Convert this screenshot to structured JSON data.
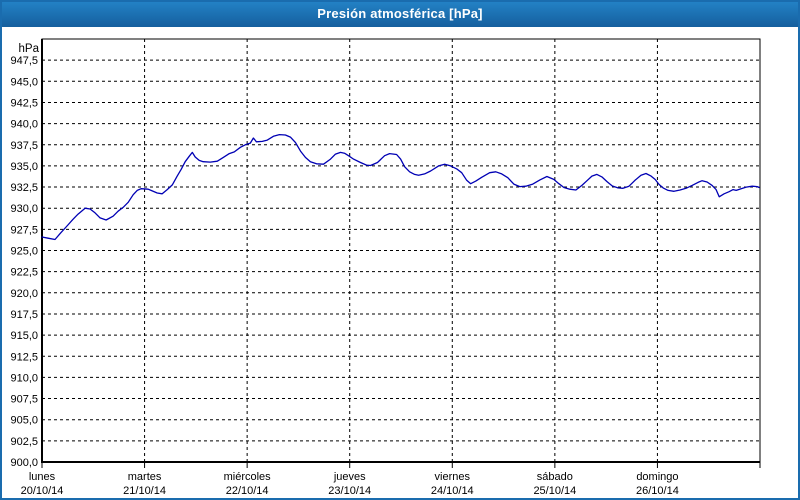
{
  "window": {
    "title": "Presión atmosférica [hPa]"
  },
  "colors": {
    "titlebar_top": "#2484c8",
    "titlebar_bottom": "#155f9e",
    "window_border": "#1a6cae",
    "plot_border": "#000000",
    "gridline": "#000000",
    "series_line": "#0000b4",
    "title_text": "#ffffff",
    "axis_text": "#000000",
    "background": "#ffffff"
  },
  "chart_data": {
    "type": "line",
    "title": "Presión atmosférica [hPa]",
    "grid": "dashed",
    "legend": "none",
    "y_axis": {
      "unit": "hPa",
      "min": 900,
      "max": 950,
      "tick_step": 2.5,
      "ticks": [
        [
          "947,5",
          947.5
        ],
        [
          "945,0",
          945.0
        ],
        [
          "942,5",
          942.5
        ],
        [
          "940,0",
          940.0
        ],
        [
          "937,5",
          937.5
        ],
        [
          "935,0",
          935.0
        ],
        [
          "932,5",
          932.5
        ],
        [
          "930,0",
          930.0
        ],
        [
          "927,5",
          927.5
        ],
        [
          "925,0",
          925.0
        ],
        [
          "922,5",
          922.5
        ],
        [
          "920,0",
          920.0
        ],
        [
          "917,5",
          917.5
        ],
        [
          "915,0",
          915.0
        ],
        [
          "912,5",
          912.5
        ],
        [
          "910,0",
          910.0
        ],
        [
          "907,5",
          907.5
        ],
        [
          "905,0",
          905.0
        ],
        [
          "902,5",
          902.5
        ],
        [
          "900,0",
          900.0
        ]
      ]
    },
    "x_axis": {
      "days": [
        {
          "name": "lunes",
          "date": "20/10/14"
        },
        {
          "name": "martes",
          "date": "21/10/14"
        },
        {
          "name": "miércoles",
          "date": "22/10/14"
        },
        {
          "name": "jueves",
          "date": "23/10/14"
        },
        {
          "name": "viernes",
          "date": "24/10/14"
        },
        {
          "name": "sábado",
          "date": "25/10/14"
        },
        {
          "name": "domingo",
          "date": "26/10/14"
        }
      ]
    },
    "series": [
      {
        "name": "Presión atmosférica",
        "color": "#0000b4",
        "points": [
          [
            0.0,
            926.6
          ],
          [
            0.059,
            926.45
          ],
          [
            0.127,
            926.3
          ],
          [
            0.176,
            927.0
          ],
          [
            0.244,
            927.9
          ],
          [
            0.303,
            928.7
          ],
          [
            0.352,
            929.3
          ],
          [
            0.42,
            930.0
          ],
          [
            0.469,
            929.9
          ],
          [
            0.518,
            929.45
          ],
          [
            0.566,
            928.85
          ],
          [
            0.625,
            928.6
          ],
          [
            0.693,
            929.05
          ],
          [
            0.742,
            929.65
          ],
          [
            0.791,
            930.1
          ],
          [
            0.84,
            930.7
          ],
          [
            0.889,
            931.6
          ],
          [
            0.928,
            932.1
          ],
          [
            0.967,
            932.3
          ],
          [
            1.035,
            932.25
          ],
          [
            1.074,
            932.05
          ],
          [
            1.123,
            931.8
          ],
          [
            1.172,
            931.7
          ],
          [
            1.221,
            932.2
          ],
          [
            1.27,
            932.75
          ],
          [
            1.318,
            933.8
          ],
          [
            1.357,
            934.6
          ],
          [
            1.396,
            935.5
          ],
          [
            1.436,
            936.15
          ],
          [
            1.465,
            936.6
          ],
          [
            1.494,
            936.05
          ],
          [
            1.533,
            935.65
          ],
          [
            1.572,
            935.5
          ],
          [
            1.641,
            935.45
          ],
          [
            1.709,
            935.55
          ],
          [
            1.768,
            936.0
          ],
          [
            1.826,
            936.45
          ],
          [
            1.875,
            936.65
          ],
          [
            1.934,
            937.2
          ],
          [
            1.982,
            937.5
          ],
          [
            2.031,
            937.7
          ],
          [
            2.061,
            938.3
          ],
          [
            2.09,
            937.85
          ],
          [
            2.148,
            937.9
          ],
          [
            2.197,
            938.05
          ],
          [
            2.256,
            938.5
          ],
          [
            2.314,
            938.7
          ],
          [
            2.373,
            938.65
          ],
          [
            2.422,
            938.4
          ],
          [
            2.471,
            937.75
          ],
          [
            2.52,
            936.75
          ],
          [
            2.568,
            936.0
          ],
          [
            2.617,
            935.5
          ],
          [
            2.676,
            935.25
          ],
          [
            2.744,
            935.2
          ],
          [
            2.813,
            935.8
          ],
          [
            2.861,
            936.4
          ],
          [
            2.91,
            936.6
          ],
          [
            2.949,
            936.5
          ],
          [
            2.988,
            936.2
          ],
          [
            3.037,
            935.8
          ],
          [
            3.105,
            935.4
          ],
          [
            3.164,
            935.1
          ],
          [
            3.203,
            935.05
          ],
          [
            3.271,
            935.4
          ],
          [
            3.34,
            936.2
          ],
          [
            3.389,
            936.45
          ],
          [
            3.457,
            936.35
          ],
          [
            3.496,
            935.8
          ],
          [
            3.535,
            934.9
          ],
          [
            3.584,
            934.3
          ],
          [
            3.633,
            934.0
          ],
          [
            3.672,
            933.9
          ],
          [
            3.73,
            934.05
          ],
          [
            3.789,
            934.4
          ],
          [
            3.867,
            935.0
          ],
          [
            3.926,
            935.2
          ],
          [
            3.984,
            935.0
          ],
          [
            4.043,
            934.65
          ],
          [
            4.092,
            934.2
          ],
          [
            4.141,
            933.3
          ],
          [
            4.18,
            932.9
          ],
          [
            4.229,
            933.2
          ],
          [
            4.287,
            933.65
          ],
          [
            4.365,
            934.2
          ],
          [
            4.424,
            934.3
          ],
          [
            4.482,
            934.05
          ],
          [
            4.541,
            933.6
          ],
          [
            4.6,
            932.85
          ],
          [
            4.658,
            932.55
          ],
          [
            4.717,
            932.6
          ],
          [
            4.785,
            932.85
          ],
          [
            4.854,
            933.35
          ],
          [
            4.922,
            933.75
          ],
          [
            4.99,
            933.4
          ],
          [
            5.039,
            932.9
          ],
          [
            5.088,
            932.45
          ],
          [
            5.146,
            932.25
          ],
          [
            5.205,
            932.15
          ],
          [
            5.264,
            932.7
          ],
          [
            5.313,
            933.25
          ],
          [
            5.361,
            933.8
          ],
          [
            5.41,
            934.0
          ],
          [
            5.459,
            933.7
          ],
          [
            5.508,
            933.15
          ],
          [
            5.557,
            932.65
          ],
          [
            5.615,
            932.4
          ],
          [
            5.664,
            932.35
          ],
          [
            5.723,
            932.6
          ],
          [
            5.781,
            933.3
          ],
          [
            5.84,
            933.9
          ],
          [
            5.889,
            934.1
          ],
          [
            5.938,
            933.8
          ],
          [
            5.977,
            933.4
          ],
          [
            6.016,
            932.8
          ],
          [
            6.055,
            932.4
          ],
          [
            6.104,
            932.1
          ],
          [
            6.162,
            932.0
          ],
          [
            6.221,
            932.15
          ],
          [
            6.279,
            932.35
          ],
          [
            6.338,
            932.7
          ],
          [
            6.396,
            933.05
          ],
          [
            6.436,
            933.25
          ],
          [
            6.484,
            933.1
          ],
          [
            6.533,
            932.7
          ],
          [
            6.572,
            932.2
          ],
          [
            6.602,
            931.35
          ],
          [
            6.65,
            931.7
          ],
          [
            6.699,
            931.95
          ],
          [
            6.738,
            932.2
          ],
          [
            6.768,
            932.1
          ],
          [
            6.816,
            932.3
          ],
          [
            6.865,
            932.5
          ],
          [
            6.924,
            932.6
          ],
          [
            6.973,
            932.55
          ],
          [
            6.992,
            932.45
          ]
        ]
      }
    ]
  }
}
